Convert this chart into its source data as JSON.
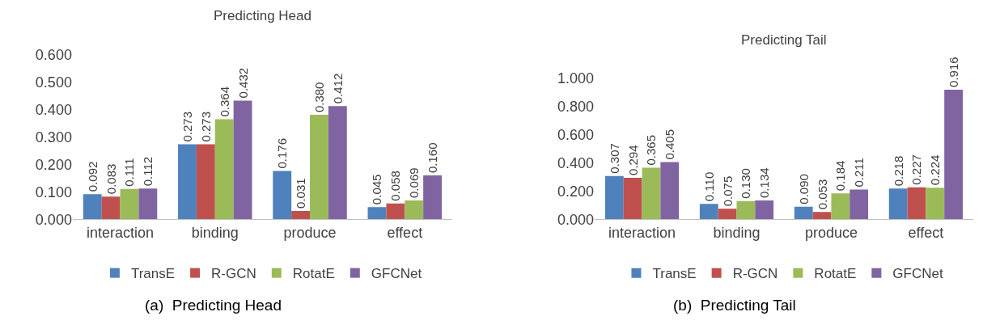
{
  "chart_data": [
    {
      "type": "bar",
      "title": "Predicting Head",
      "categories": [
        "interaction",
        "binding",
        "produce",
        "effect"
      ],
      "series": [
        {
          "name": "TransE",
          "color": "#4f81bd",
          "values": [
            0.092,
            0.273,
            0.176,
            0.045
          ],
          "value_labels": [
            "0.092",
            "0.273",
            "0.176",
            "0.045"
          ]
        },
        {
          "name": "R-GCN",
          "color": "#c0504d",
          "values": [
            0.083,
            0.273,
            0.031,
            0.058
          ],
          "value_labels": [
            "0.083",
            "0.273",
            "0.031",
            "0.058"
          ]
        },
        {
          "name": "RotatE",
          "color": "#9bbb59",
          "values": [
            0.111,
            0.364,
            0.38,
            0.069
          ],
          "value_labels": [
            "0.111",
            "0.364",
            "0.380",
            "0.069"
          ]
        },
        {
          "name": "GFCNet",
          "color": "#8064a2",
          "values": [
            0.112,
            0.432,
            0.412,
            0.16
          ],
          "value_labels": [
            "0.112",
            "0.432",
            "0.412",
            "0.160"
          ]
        }
      ],
      "ylim": [
        0,
        0.6
      ],
      "yticks": [
        {
          "value": 0,
          "label": "0.000"
        },
        {
          "value": 0.1,
          "label": "0.100"
        },
        {
          "value": 0.2,
          "label": "0.200"
        },
        {
          "value": 0.3,
          "label": "0.300"
        },
        {
          "value": 0.4,
          "label": "0.400"
        },
        {
          "value": 0.5,
          "label": "0.500"
        },
        {
          "value": 0.6,
          "label": "0.600"
        }
      ],
      "legend": "bottom",
      "grid": false,
      "annotations": [
        "(a)  Predicting Head"
      ]
    },
    {
      "type": "bar",
      "title": "Predicting Tail",
      "categories": [
        "interaction",
        "binding",
        "produce",
        "effect"
      ],
      "series": [
        {
          "name": "TransE",
          "color": "#4f81bd",
          "values": [
            0.307,
            0.11,
            0.09,
            0.218
          ],
          "value_labels": [
            "0.307",
            "0.110",
            "0.090",
            "0.218"
          ]
        },
        {
          "name": "R-GCN",
          "color": "#c0504d",
          "values": [
            0.294,
            0.075,
            0.053,
            0.227
          ],
          "value_labels": [
            "0.294",
            "0.075",
            "0.053",
            "0.227"
          ]
        },
        {
          "name": "RotatE",
          "color": "#9bbb59",
          "values": [
            0.365,
            0.13,
            0.184,
            0.224
          ],
          "value_labels": [
            "0.365",
            "0.130",
            "0.184",
            "0.224"
          ]
        },
        {
          "name": "GFCNet",
          "color": "#8064a2",
          "values": [
            0.405,
            0.134,
            0.211,
            0.916
          ],
          "value_labels": [
            "0.405",
            "0.134",
            "0.211",
            "0.916"
          ]
        }
      ],
      "ylim": [
        0,
        1.0
      ],
      "yticks": [
        {
          "value": 0,
          "label": "0.000"
        },
        {
          "value": 0.2,
          "label": "0.200"
        },
        {
          "value": 0.4,
          "label": "0.400"
        },
        {
          "value": 0.6,
          "label": "0.600"
        },
        {
          "value": 0.8,
          "label": "0.800"
        },
        {
          "value": 1.0,
          "label": "1.000"
        }
      ],
      "legend": "bottom",
      "grid": false,
      "annotations": [
        "(b)  Predicting Tail"
      ]
    }
  ]
}
